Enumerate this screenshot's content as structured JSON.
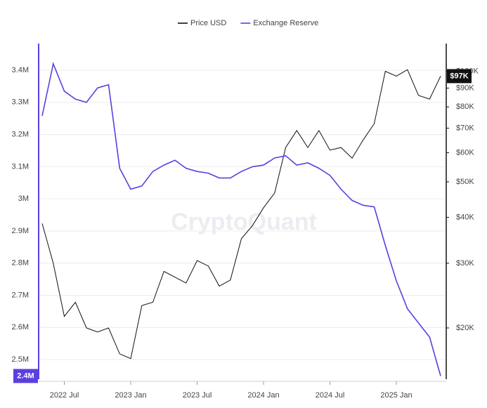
{
  "chart_data": {
    "type": "line",
    "watermark": "CryptoQuant",
    "x": [
      "2022-05",
      "2022-06",
      "2022-07",
      "2022-08",
      "2022-09",
      "2022-10",
      "2022-11",
      "2022-12",
      "2023-01",
      "2023-02",
      "2023-03",
      "2023-04",
      "2023-05",
      "2023-06",
      "2023-07",
      "2023-08",
      "2023-09",
      "2023-10",
      "2023-11",
      "2023-12",
      "2024-01",
      "2024-02",
      "2024-03",
      "2024-04",
      "2024-05",
      "2024-06",
      "2024-07",
      "2024-08",
      "2024-09",
      "2024-10",
      "2024-11",
      "2024-12",
      "2025-01",
      "2025-02",
      "2025-03",
      "2025-04",
      "2025-05"
    ],
    "xlim": [
      "2022-05",
      "2025-05"
    ],
    "xticks": [
      {
        "value": "2022-07",
        "label": "2022 Jul"
      },
      {
        "value": "2023-01",
        "label": "2023 Jan"
      },
      {
        "value": "2023-07",
        "label": "2023 Jul"
      },
      {
        "value": "2024-01",
        "label": "2024 Jan"
      },
      {
        "value": "2024-07",
        "label": "2024 Jul"
      },
      {
        "value": "2025-01",
        "label": "2025 Jan"
      }
    ],
    "ylim": [
      2439000,
      3483000
    ],
    "yticks": [
      {
        "value": 2500000,
        "label": "2.5M"
      },
      {
        "value": 2600000,
        "label": "2.6M"
      },
      {
        "value": 2700000,
        "label": "2.7M"
      },
      {
        "value": 2800000,
        "label": "2.8M"
      },
      {
        "value": 2900000,
        "label": "2.9M"
      },
      {
        "value": 3000000,
        "label": "3M"
      },
      {
        "value": 3100000,
        "label": "3.1M"
      },
      {
        "value": 3200000,
        "label": "3.2M"
      },
      {
        "value": 3300000,
        "label": "3.3M"
      },
      {
        "value": 3400000,
        "label": "3.4M"
      }
    ],
    "y2lim": [
      14500,
      119000
    ],
    "y2_log": true,
    "y2ticks": [
      {
        "value": 20000,
        "label": "$20K"
      },
      {
        "value": 30000,
        "label": "$30K"
      },
      {
        "value": 40000,
        "label": "$40K"
      },
      {
        "value": 50000,
        "label": "$50K"
      },
      {
        "value": 60000,
        "label": "$60K"
      },
      {
        "value": 70000,
        "label": "$70K"
      },
      {
        "value": 80000,
        "label": "$80K"
      },
      {
        "value": 90000,
        "label": "$90K"
      },
      {
        "value": 100000,
        "label": "$100K"
      }
    ],
    "grid": true,
    "legend": "top",
    "series": [
      {
        "name": "Price USD",
        "color": "#111111",
        "axis": "y2",
        "last_value_label": "$97K",
        "values": [
          38500,
          30000,
          21500,
          23500,
          20000,
          19500,
          20000,
          17000,
          16500,
          23000,
          23500,
          28500,
          27500,
          26500,
          30500,
          29500,
          26000,
          27000,
          35000,
          38000,
          42500,
          46600,
          62000,
          69000,
          62000,
          69000,
          61000,
          62000,
          58000,
          65000,
          72000,
          100000,
          97000,
          101000,
          86000,
          84000,
          97000
        ]
      },
      {
        "name": "Exchange Reserve",
        "color": "#5b3fe0",
        "axis": "y",
        "last_value_label": "2.4M",
        "values": [
          3258000,
          3420000,
          3335000,
          3310000,
          3300000,
          3345000,
          3355000,
          3095000,
          3030000,
          3040000,
          3085000,
          3105000,
          3120000,
          3095000,
          3085000,
          3080000,
          3065000,
          3065000,
          3085000,
          3100000,
          3105000,
          3127000,
          3134000,
          3105000,
          3112000,
          3095000,
          3073000,
          3030000,
          2995000,
          2980000,
          2975000,
          2855000,
          2745000,
          2658000,
          2614000,
          2570000,
          2449000
        ]
      }
    ]
  }
}
